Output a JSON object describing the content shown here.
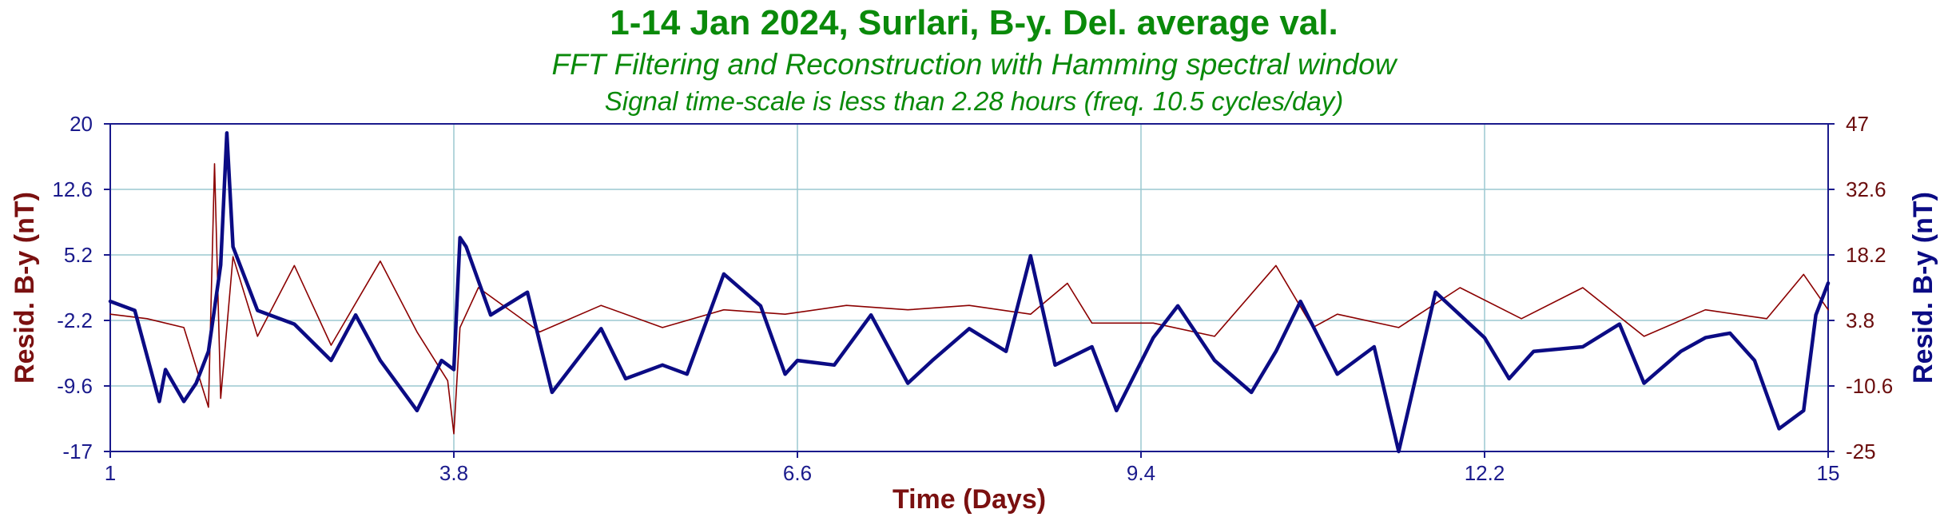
{
  "chart_data": {
    "type": "line",
    "title": "1-14 Jan 2024, Surlari, B-y. Del. average val.",
    "subtitle": "FFT Filtering and Reconstruction with Hamming spectral window",
    "subtitle2": "Signal time-scale is less than 2.28 hours (freq. 10.5 cycles/day)",
    "xlabel": "Time (Days)",
    "ylabel_left": "Resid. B-y (nT)",
    "ylabel_right": "Resid. B-y (nT)",
    "xlim": [
      1,
      15
    ],
    "ylim_left": [
      -17,
      20
    ],
    "ylim_right": [
      -25,
      47
    ],
    "x_ticks": [
      "1",
      "3.8",
      "6.6",
      "9.4",
      "12.2",
      "15"
    ],
    "y_ticks_left": [
      "20",
      "12.6",
      "5.2",
      "-2.2",
      "-9.6",
      "-17"
    ],
    "y_ticks_right": [
      "47",
      "32.6",
      "18.2",
      "3.8",
      "-10.6",
      "-25"
    ],
    "grid": true,
    "colors": {
      "filtered": "#8b0000",
      "reconstructed": "#0b0b84",
      "grid": "#9cc8d0",
      "axis": "#1a1a8c"
    },
    "series": [
      {
        "axis": "left",
        "x": [
          1.0,
          1.3,
          1.6,
          1.8,
          1.85,
          1.9,
          2.0,
          2.2,
          2.5,
          2.8,
          3.2,
          3.5,
          3.75,
          3.8,
          3.85,
          4.0,
          4.5,
          5.0,
          5.5,
          6.0,
          6.5,
          7.0,
          7.5,
          8.0,
          8.5,
          8.8,
          9.0,
          9.5,
          10.0,
          10.5,
          10.8,
          11.0,
          11.5,
          12.0,
          12.5,
          13.0,
          13.5,
          14.0,
          14.5,
          14.8,
          15.0
        ],
        "y": [
          -1.5,
          -2.0,
          -3.0,
          -12.0,
          15.5,
          -11.0,
          5.0,
          -4.0,
          4.0,
          -5.0,
          4.5,
          -3.5,
          -9.0,
          -15.0,
          -3.0,
          1.5,
          -3.5,
          -0.5,
          -3.0,
          -1.0,
          -1.5,
          -0.5,
          -1.0,
          -0.5,
          -1.5,
          2.0,
          -2.5,
          -2.5,
          -4.0,
          4.0,
          -3.0,
          -1.5,
          -3.0,
          1.5,
          -2.0,
          1.5,
          -4.0,
          -1.0,
          -2.0,
          3.0,
          -1.0
        ]
      },
      {
        "axis": "right",
        "x": [
          1.0,
          1.2,
          1.4,
          1.45,
          1.6,
          1.7,
          1.8,
          1.9,
          1.95,
          2.0,
          2.2,
          2.5,
          2.8,
          3.0,
          3.2,
          3.5,
          3.7,
          3.8,
          3.85,
          3.9,
          4.1,
          4.4,
          4.6,
          4.8,
          5.0,
          5.2,
          5.5,
          5.7,
          6.0,
          6.3,
          6.5,
          6.6,
          6.9,
          7.2,
          7.5,
          7.7,
          8.0,
          8.3,
          8.5,
          8.7,
          9.0,
          9.2,
          9.5,
          9.7,
          10.0,
          10.3,
          10.5,
          10.7,
          11.0,
          11.3,
          11.5,
          11.8,
          12.0,
          12.2,
          12.4,
          12.6,
          13.0,
          13.3,
          13.5,
          13.8,
          14.0,
          14.2,
          14.4,
          14.6,
          14.8,
          14.9,
          15.0
        ],
        "y": [
          8,
          6,
          -14,
          -7,
          -14,
          -10,
          -3,
          16,
          45,
          20,
          6,
          3,
          -5,
          5,
          -5,
          -16,
          -5,
          -7,
          22,
          20,
          5,
          10,
          -12,
          -5,
          2,
          -9,
          -6,
          -8,
          14,
          7,
          -8,
          -5,
          -6,
          5,
          -10,
          -5,
          2,
          -3,
          18,
          -6,
          -2,
          -16,
          0,
          7,
          -5,
          -12,
          -3,
          8,
          -8,
          -2,
          -25,
          10,
          5,
          0,
          -9,
          -3,
          -2,
          3,
          -10,
          -3,
          0,
          1,
          -5,
          -20,
          -16,
          5,
          12
        ]
      }
    ]
  }
}
